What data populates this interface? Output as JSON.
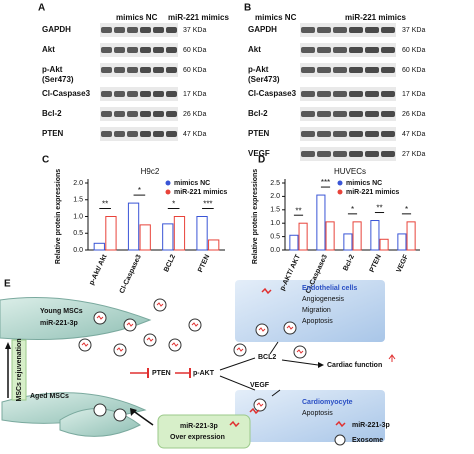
{
  "panels": [
    {
      "letter": "A",
      "header": [
        "mimics NC",
        "miR-221 mimics"
      ],
      "rows": [
        {
          "label": "GAPDH",
          "kda": "37 KDa"
        },
        {
          "label": "Akt",
          "kda": "60 KDa"
        },
        {
          "label": "p-Akt",
          "sublabel": "(Ser473)",
          "kda": "60 KDa"
        },
        {
          "label": "Cl-Caspase3",
          "kda": "17 KDa"
        },
        {
          "label": "Bcl-2",
          "kda": "26 KDa"
        },
        {
          "label": "PTEN",
          "kda": "47 KDa"
        }
      ]
    },
    {
      "letter": "B",
      "header": [
        "mimics NC",
        "miR-221 mimics"
      ],
      "rows": [
        {
          "label": "GAPDH",
          "kda": "37 KDa"
        },
        {
          "label": "Akt",
          "kda": "60 KDa"
        },
        {
          "label": "p-Akt",
          "sublabel": "(Ser473)",
          "kda": "60 KDa"
        },
        {
          "label": "Cl-Caspase3",
          "kda": "17 KDa"
        },
        {
          "label": "Bcl-2",
          "kda": "26 KDa"
        },
        {
          "label": "PTEN",
          "kda": "47 KDa"
        },
        {
          "label": "VEGF",
          "kda": "27 KDa"
        }
      ]
    }
  ],
  "chart_data": [
    {
      "type": "bar",
      "letter": "C",
      "title": "H9c2",
      "y_label": "Relative protein expressions",
      "categories": [
        "p-Akt/ Akt",
        "Cl-Caspase3",
        "BCL2",
        "PTEN"
      ],
      "series": [
        {
          "name": "mimics NC",
          "color": "#3a55d6",
          "values": [
            0.2,
            1.4,
            0.78,
            1.0
          ]
        },
        {
          "name": "miR-221 mimics",
          "color": "#e8433a",
          "values": [
            1.0,
            0.75,
            1.0,
            0.3
          ]
        }
      ],
      "annotations": [
        "**",
        "*",
        "*",
        "***"
      ],
      "ylim": [
        0,
        2
      ],
      "yticks": [
        {
          "value": 0,
          "label": "0.0"
        },
        {
          "value": 0.5,
          "label": "0.5"
        },
        {
          "value": 1,
          "label": "1.0"
        },
        {
          "value": 1.5,
          "label": "1.5"
        },
        {
          "value": 2,
          "label": "2.0"
        }
      ]
    },
    {
      "type": "bar",
      "letter": "D",
      "title": "HUVECs",
      "y_label": "Relative protein expressions",
      "categories": [
        "p-AKT/ AKT",
        "Cl-Caspase3",
        "Bcl-2",
        "PTEN",
        "VEGF"
      ],
      "series": [
        {
          "name": "mimics NC",
          "color": "#3a55d6",
          "values": [
            0.55,
            2.05,
            0.6,
            1.1,
            0.6
          ]
        },
        {
          "name": "miR-221 mimics",
          "color": "#e8433a",
          "values": [
            1.0,
            1.05,
            1.05,
            0.4,
            1.05
          ]
        }
      ],
      "annotations": [
        "**",
        "***",
        "*",
        "**",
        "*"
      ],
      "ylim": [
        0,
        2.5
      ],
      "yticks": [
        {
          "value": 0,
          "label": "0.0"
        },
        {
          "value": 0.5,
          "label": "0.5"
        },
        {
          "value": 1,
          "label": "1.0"
        },
        {
          "value": 1.5,
          "label": "1.5"
        },
        {
          "value": 2,
          "label": "2.0"
        },
        {
          "value": 2.5,
          "label": "2.5"
        }
      ]
    }
  ],
  "diagram": {
    "letter": "E",
    "labels": {
      "young_mscs": "Young MSCs",
      "mir": "miR-221-3p",
      "rejuvenation": "MSCs rejuvenation",
      "aged_mscs": "Aged MSCs",
      "pten": "PTEN",
      "p_akt": "p-AKT",
      "bcl2": "BCL2",
      "vegf": "VEGF",
      "cardiac": "Cardiac function",
      "endothelial": "Endothelial cells",
      "angiogenesis": "Angiogenesis",
      "migration": "Migration",
      "apoptosis_e": "Apoptosis",
      "cardiomyocyte": "Cardiomyocyte",
      "apoptosis_c": "Apoptosis",
      "over_mir": "miR-221-3p",
      "over": "Over expression",
      "legend_mir": "miR-221-3p",
      "legend_exosome": "Exosome"
    }
  }
}
